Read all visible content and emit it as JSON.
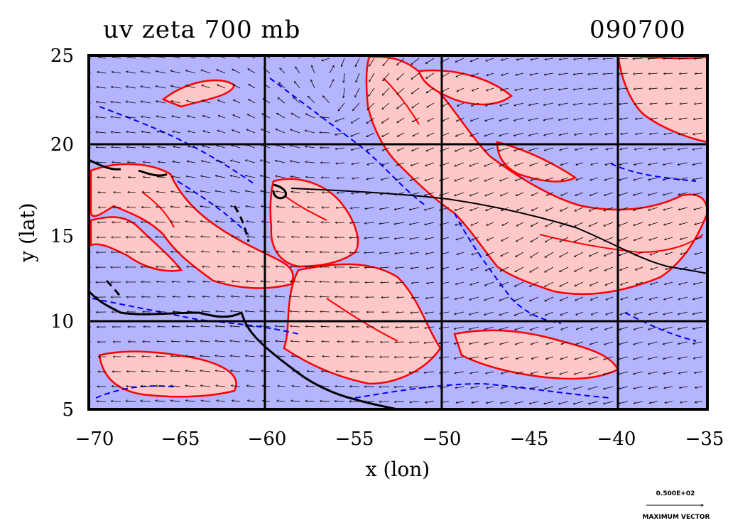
{
  "title_left": "uv zeta 700 mb",
  "title_right": "090700",
  "x_axis_label": "x (lon)",
  "y_axis_label": "y (lat)",
  "x_ticks": [
    "−70",
    "−65",
    "−60",
    "−55",
    "−50",
    "−45",
    "−40",
    "−35"
  ],
  "y_ticks": [
    "25",
    "20",
    "15",
    "10",
    "5"
  ],
  "vector_legend": {
    "value_label": "0.500E+02",
    "caption": "MAXIMUM VECTOR"
  },
  "colors": {
    "positive_fill": "#ffc8c8",
    "positive_contour": "#ff0000",
    "negative_fill": "#b4b4ff",
    "negative_contour": "#0000ff",
    "coastline": "#000000"
  },
  "map": {
    "lon_range": [
      -70,
      -35
    ],
    "lat_range": [
      5,
      25
    ],
    "gridlines_lon": [
      -60,
      -50,
      -40
    ],
    "gridlines_lat": [
      10,
      20
    ]
  }
}
